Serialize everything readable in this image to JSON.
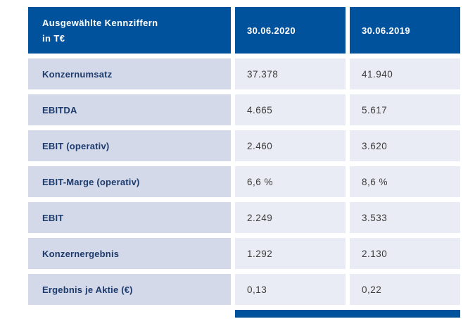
{
  "table": {
    "header": {
      "title_line1": "Ausgewählte Kennziffern",
      "title_line2": "in T€",
      "col_2020": "30.06.2020",
      "col_2019": "30.06.2019"
    },
    "rows": [
      {
        "label": "Konzernumsatz",
        "values": [
          "37.378",
          "41.940"
        ]
      },
      {
        "label": "EBITDA",
        "values": [
          "4.665",
          "5.617"
        ]
      },
      {
        "label": "EBIT (operativ)",
        "values": [
          "2.460",
          "3.620"
        ]
      },
      {
        "label": "EBIT-Marge (operativ)",
        "values": [
          "6,6 %",
          "8,6 %"
        ]
      },
      {
        "label": "EBIT",
        "values": [
          "2.249",
          "3.533"
        ]
      },
      {
        "label": "Konzernergebnis",
        "values": [
          "1.292",
          "2.130"
        ]
      },
      {
        "label": "Ergebnis je Aktie (€)",
        "values": [
          "0,13",
          "0,22"
        ]
      }
    ],
    "colors": {
      "header_bg": "#00529c",
      "label_cell_bg": "#d3d9e8",
      "value_cell_bg": "#e9ecf4",
      "label_text": "#1d3a6d",
      "value_text": "#3c3c3b"
    }
  }
}
